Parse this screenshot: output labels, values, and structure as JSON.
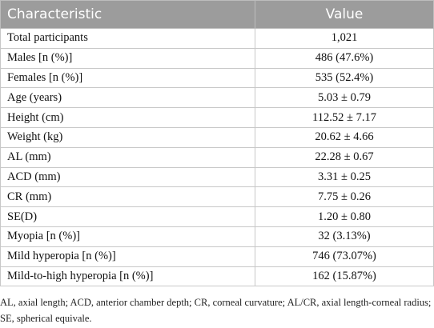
{
  "table": {
    "header": [
      "Characteristic",
      "Value"
    ],
    "rows": [
      [
        "Total participants",
        "1,021"
      ],
      [
        "Males [n (%)]",
        "486 (47.6%)"
      ],
      [
        "Females [n (%)]",
        "535 (52.4%)"
      ],
      [
        "Age (years)",
        "5.03 ± 0.79"
      ],
      [
        "Height (cm)",
        "112.52 ± 7.17"
      ],
      [
        "Weight (kg)",
        "20.62 ± 4.66"
      ],
      [
        "AL (mm)",
        "22.28 ± 0.67"
      ],
      [
        "ACD (mm)",
        "3.31 ± 0.25"
      ],
      [
        "CR (mm)",
        "7.75 ± 0.26"
      ],
      [
        "SE(D)",
        "1.20 ± 0.80"
      ],
      [
        "Myopia [n (%)]",
        "32 (3.13%)"
      ],
      [
        "Mild hyperopia [n (%)]",
        "746 (73.07%)"
      ],
      [
        "Mild-to-high hyperopia [n (%)]",
        "162 (15.87%)"
      ]
    ]
  },
  "footnote": "AL, axial length; ACD, anterior chamber depth; CR, corneal curvature; AL/CR, axial length-corneal radius; SE, spherical equivale."
}
